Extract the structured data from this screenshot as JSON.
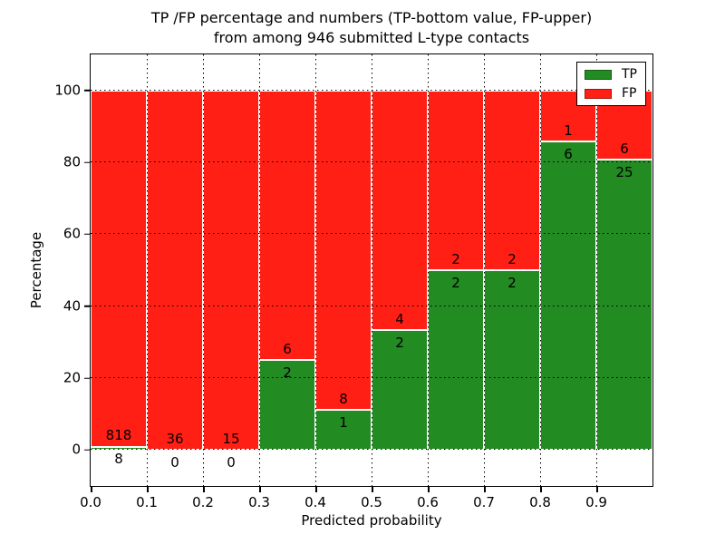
{
  "title": {
    "line1": "TP /FP percentage and numbers (TP-bottom value, FP-upper)",
    "line2": "from among 946 submitted L-type contacts"
  },
  "axes": {
    "xlabel": "Predicted probability",
    "ylabel": "Percentage",
    "x_tick_labels": [
      "0.0",
      "0.1",
      "0.2",
      "0.3",
      "0.4",
      "0.5",
      "0.6",
      "0.7",
      "0.8",
      "0.9"
    ],
    "y_tick_labels": [
      "0",
      "20",
      "40",
      "60",
      "80",
      "100"
    ]
  },
  "legend": {
    "items": [
      {
        "label": "TP",
        "color": "#228B22"
      },
      {
        "label": "FP",
        "color": "#ff1f15"
      }
    ]
  },
  "chart_data": {
    "type": "bar",
    "stacked": true,
    "title": "TP /FP percentage and numbers (TP-bottom value, FP-upper) from among 946 submitted L-type contacts",
    "xlabel": "Predicted probability",
    "ylabel": "Percentage",
    "total_submitted": 946,
    "bin_edges": [
      0.0,
      0.1,
      0.2,
      0.3,
      0.4,
      0.5,
      0.6,
      0.7,
      0.8,
      0.9,
      1.0
    ],
    "series": [
      {
        "name": "TP",
        "color": "#228B22",
        "counts": [
          8,
          0,
          0,
          2,
          1,
          2,
          2,
          2,
          6,
          25
        ],
        "percent": [
          0.97,
          0.0,
          0.0,
          25.0,
          11.11,
          33.33,
          50.0,
          50.0,
          85.71,
          80.65
        ]
      },
      {
        "name": "FP",
        "color": "#ff1f15",
        "counts": [
          818,
          36,
          15,
          6,
          8,
          4,
          2,
          2,
          1,
          6
        ],
        "percent": [
          99.03,
          100.0,
          100.0,
          75.0,
          88.89,
          66.67,
          50.0,
          50.0,
          14.29,
          19.35
        ]
      }
    ],
    "xlim": [
      0.0,
      1.0
    ],
    "ylim": [
      -10,
      110
    ],
    "x_ticks": [
      0.0,
      0.1,
      0.2,
      0.3,
      0.4,
      0.5,
      0.6,
      0.7,
      0.8,
      0.9
    ],
    "y_ticks": [
      0,
      20,
      40,
      60,
      80,
      100
    ],
    "grid": true,
    "grid_style": "dotted",
    "legend_position": "upper right"
  }
}
